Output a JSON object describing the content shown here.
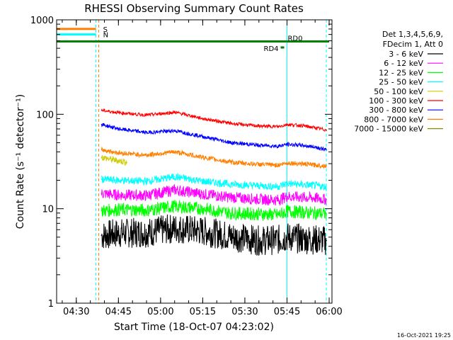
{
  "chart_data": {
    "type": "line",
    "title": "RHESSI Observing Summary Count Rates",
    "xlabel": "Start Time (18-Oct-07 04:23:02)",
    "ylabel": "Count Rate (s⁻¹ detector⁻¹)",
    "yscale": "log",
    "ylim": [
      1,
      1000
    ],
    "xlim": [
      "04:23",
      "06:01"
    ],
    "x_ticks": [
      "04:30",
      "04:45",
      "05:00",
      "05:15",
      "05:30",
      "05:45",
      "06:00"
    ],
    "y_ticks": [
      "1",
      "10",
      "100",
      "1000"
    ],
    "legend": {
      "placement": "right",
      "header": [
        "Det 1,3,4,5,6,9,",
        "FDecim 1, Att 0"
      ]
    },
    "series": [
      {
        "name": "3 - 6 keV",
        "color": "#000000",
        "x": [
          "04:39",
          "04:45",
          "04:55",
          "05:05",
          "05:15",
          "05:25",
          "05:35",
          "05:42",
          "05:45",
          "05:50",
          "05:55",
          "05:59"
        ],
        "values": [
          5.2,
          5.5,
          5.6,
          6.2,
          5.8,
          5.1,
          4.6,
          4.7,
          5.0,
          4.8,
          4.7,
          4.6
        ]
      },
      {
        "name": "6 - 12 keV",
        "color": "#ff00ff",
        "x": [
          "04:39",
          "04:45",
          "04:55",
          "05:05",
          "05:15",
          "05:25",
          "05:35",
          "05:42",
          "05:45",
          "05:50",
          "05:55",
          "05:59"
        ],
        "values": [
          14.5,
          14.0,
          13.8,
          15.8,
          14.3,
          13.2,
          12.6,
          12.4,
          13.5,
          13.2,
          13.0,
          12.5
        ]
      },
      {
        "name": "12 - 25 keV",
        "color": "#00ff00",
        "x": [
          "04:39",
          "04:45",
          "04:55",
          "05:05",
          "05:15",
          "05:25",
          "05:35",
          "05:42",
          "05:45",
          "05:50",
          "05:55",
          "05:59"
        ],
        "values": [
          9.5,
          9.8,
          9.6,
          10.6,
          10.0,
          9.0,
          8.8,
          8.6,
          9.4,
          9.2,
          9.0,
          8.8
        ]
      },
      {
        "name": "25 - 50 keV",
        "color": "#00ffff",
        "x": [
          "04:39",
          "04:45",
          "04:55",
          "05:05",
          "05:15",
          "05:25",
          "05:35",
          "05:42",
          "05:45",
          "05:50",
          "05:55",
          "05:59"
        ],
        "values": [
          20.5,
          20.0,
          19.5,
          21.8,
          19.5,
          18.2,
          17.5,
          17.2,
          18.5,
          18.0,
          17.6,
          17.0
        ]
      },
      {
        "name": "50 - 100 keV",
        "color": "#cccc00",
        "x": [
          "04:39",
          "04:43",
          "04:48"
        ],
        "values": [
          35,
          33,
          31
        ]
      },
      {
        "name": "100 - 300 keV",
        "color": "#ff0000",
        "x": [
          "04:39",
          "04:45",
          "04:55",
          "05:05",
          "05:15",
          "05:25",
          "05:35",
          "05:42",
          "05:45",
          "05:50",
          "05:55",
          "05:59"
        ],
        "values": [
          110,
          104,
          98,
          105,
          90,
          80,
          75,
          74,
          78,
          76,
          72,
          68
        ]
      },
      {
        "name": "300 - 800 keV",
        "color": "#0000ff",
        "x": [
          "04:39",
          "04:45",
          "04:55",
          "05:05",
          "05:15",
          "05:25",
          "05:35",
          "05:42",
          "05:45",
          "05:50",
          "05:55",
          "05:59"
        ],
        "values": [
          78,
          70,
          64,
          67,
          58,
          50,
          47,
          46,
          48,
          47,
          45,
          42
        ]
      },
      {
        "name": "800 - 7000 keV",
        "color": "#ff8000",
        "x": [
          "04:39",
          "04:45",
          "04:55",
          "05:05",
          "05:15",
          "05:25",
          "05:35",
          "05:42",
          "05:45",
          "05:50",
          "05:55",
          "05:59"
        ],
        "values": [
          42,
          39,
          37,
          40,
          35,
          31,
          29.5,
          29,
          30.5,
          30,
          29,
          28.5
        ]
      },
      {
        "name": "7000 - 15000 keV",
        "color": "#8b8b00",
        "x": [],
        "values": []
      }
    ],
    "annotations": {
      "flags": [
        {
          "label": "S",
          "color": "#ff8000",
          "level": 800,
          "x_end": "04:37"
        },
        {
          "label": "N",
          "color": "#00ffff",
          "level": 700,
          "x_end": "04:37"
        },
        {
          "label": "RD0",
          "color": "#008000",
          "level": 590,
          "x_end": "06:00"
        },
        {
          "label": "RD4",
          "color": "#008000",
          "level": 510,
          "x_end": "05:44"
        }
      ],
      "vertical_markers": [
        {
          "x": "04:23",
          "color": "#00ffff",
          "style": "solid"
        },
        {
          "x": "04:37",
          "color": "#00ffff",
          "style": "dashed"
        },
        {
          "x": "04:38",
          "color": "#ff8000",
          "style": "dashed"
        },
        {
          "x": "05:45",
          "color": "#00ffff",
          "style": "solid"
        },
        {
          "x": "05:59",
          "color": "#00ffff",
          "style": "dashed"
        }
      ]
    },
    "footer": "16-Oct-2021 19:25",
    "grid": false
  }
}
